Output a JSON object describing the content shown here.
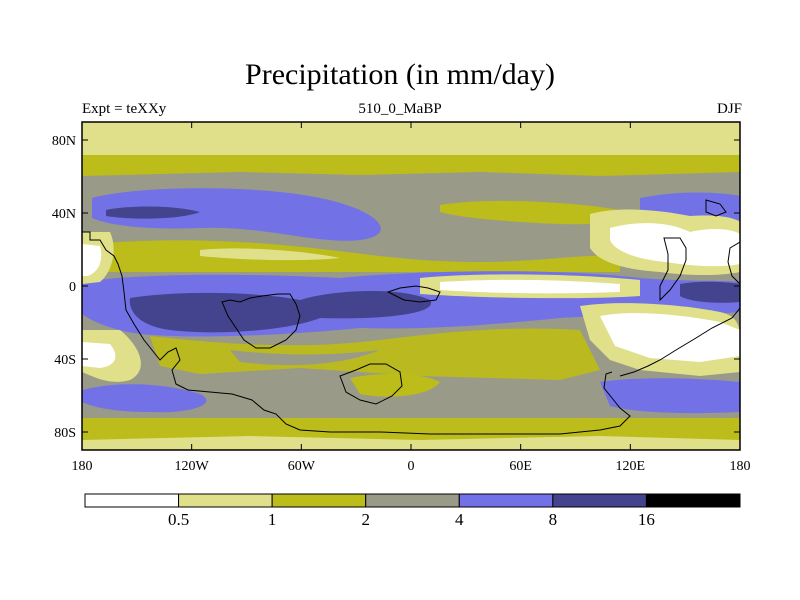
{
  "title": "Precipitation (in mm/day)",
  "subtitle_left": "Expt = teXXy",
  "subtitle_center": "510_0_MaBP",
  "subtitle_right": "DJF",
  "lat_ticks": [
    "80N",
    "40N",
    "0",
    "40S",
    "80S"
  ],
  "lon_ticks": [
    "180",
    "120W",
    "60W",
    "0",
    "60E",
    "120E",
    "180"
  ],
  "colorbar": {
    "colors": [
      "#ffffff",
      "#e0e08a",
      "#bcbc1a",
      "#9a9a88",
      "#7272e6",
      "#44448e",
      "#000000"
    ],
    "labels": [
      "0.5",
      "1",
      "2",
      "4",
      "8",
      "16"
    ]
  }
}
